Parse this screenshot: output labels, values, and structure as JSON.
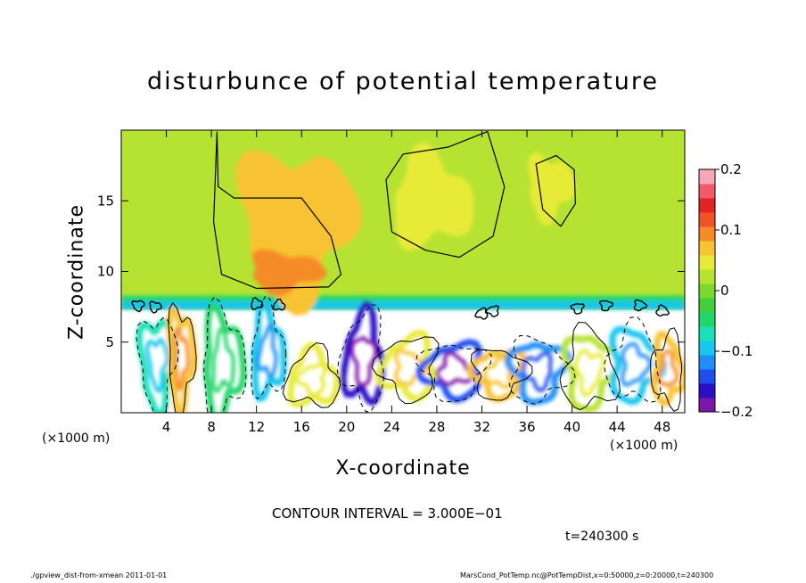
{
  "chart_data": {
    "type": "heatmap",
    "title": "disturbunce of potential temperature",
    "xlabel": "X-coordinate",
    "ylabel": "Z-coordinate",
    "x_unit": "(×1000 m)",
    "xlim": [
      0,
      50
    ],
    "ylim": [
      0,
      20
    ],
    "x_ticks": [
      4,
      8,
      12,
      16,
      20,
      24,
      28,
      32,
      36,
      40,
      44,
      48
    ],
    "y_ticks": [
      5,
      10,
      15
    ],
    "colorbar": {
      "range": [
        -0.2,
        0.2
      ],
      "ticks": [
        "0.2",
        "0.1",
        "0",
        "−0.1",
        "−0.2"
      ],
      "tick_values": [
        0.2,
        0.1,
        0,
        -0.1,
        -0.2
      ],
      "colors": [
        "#7b16a8",
        "#2b0fc7",
        "#1f4ef0",
        "#1f8ff5",
        "#19c6ef",
        "#19e0b9",
        "#21d66b",
        "#41cf3e",
        "#7ad82f",
        "#b6e332",
        "#e8ea38",
        "#f7c333",
        "#f58b28",
        "#ee5324",
        "#e32424",
        "#f25a6a",
        "#f7a8b8"
      ]
    },
    "contour_interval": "CONTOUR INTERVAL = 3.000E−01",
    "time": "t=240300 s",
    "features": [
      {
        "name": "upper-warm-plume",
        "x_range": [
          11,
          20
        ],
        "z_range": [
          8.5,
          19
        ],
        "value": 0.05
      },
      {
        "name": "inversion-cool-band",
        "x_range": [
          0,
          50
        ],
        "z_range": [
          7.3,
          8.2
        ],
        "value": -0.08
      },
      {
        "name": "upper-right-warm-patch",
        "x_range": [
          36,
          40
        ],
        "z_range": [
          14,
          18
        ],
        "value": 0.03
      },
      {
        "name": "lower-convective-layer",
        "x_range": [
          0,
          50
        ],
        "z_range": [
          0,
          7.3
        ],
        "value": 0.0
      }
    ]
  },
  "footer": {
    "left": "./gpview_dist-from-xmean  2011-01-01",
    "right": "MarsCond_PotTemp.nc@PotTempDist,x=0:50000,z=0:20000,t=240300"
  }
}
